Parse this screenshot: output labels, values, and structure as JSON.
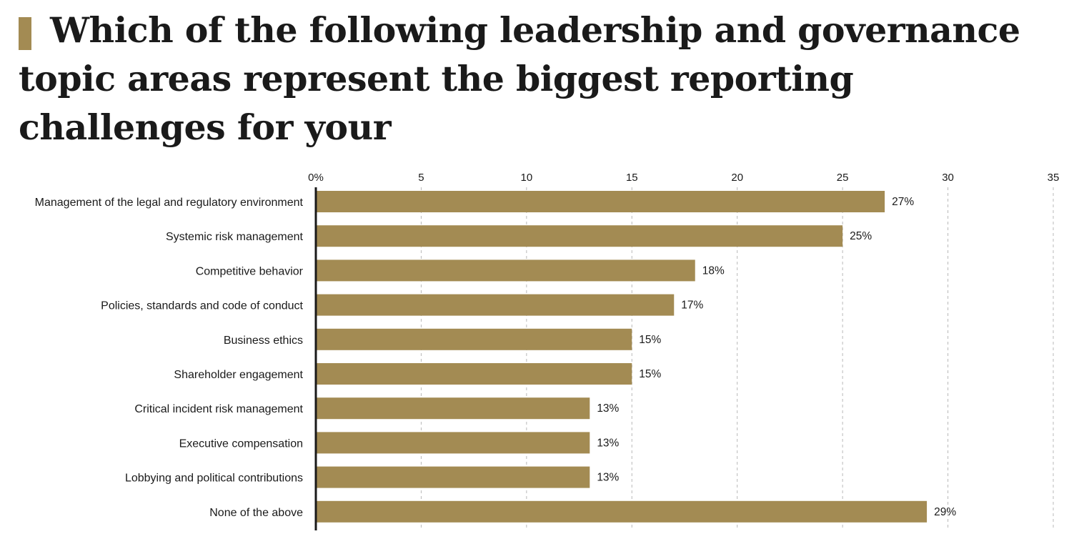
{
  "title": "Which of the following leadership and governance topic areas represent the biggest reporting challenges for your",
  "colors": {
    "bar": "#a38b53",
    "title_marker": "#a38b53",
    "axis": "#1a1a1a",
    "grid": "#b8b8b8",
    "text": "#1a1a1a"
  },
  "chart_data": {
    "type": "bar",
    "orientation": "horizontal",
    "categories": [
      "Management of the legal and regulatory environment",
      "Systemic risk management",
      "Competitive behavior",
      "Policies, standards and code of conduct",
      "Business ethics",
      "Shareholder engagement",
      "Critical incident risk management",
      "Executive compensation",
      "Lobbying and political contributions",
      "None of the above"
    ],
    "values": [
      27,
      25,
      18,
      17,
      15,
      15,
      13,
      13,
      13,
      29
    ],
    "value_labels": [
      "27%",
      "25%",
      "18%",
      "17%",
      "15%",
      "15%",
      "13%",
      "13%",
      "13%",
      "29%"
    ],
    "xlim": [
      0,
      35
    ],
    "x_ticks": [
      0,
      5,
      10,
      15,
      20,
      25,
      30,
      35
    ],
    "x_tick_labels": [
      "0%",
      "5",
      "10",
      "15",
      "20",
      "25",
      "30",
      "35"
    ],
    "x_axis_position": "top",
    "grid": true,
    "grid_style": "dashed"
  }
}
